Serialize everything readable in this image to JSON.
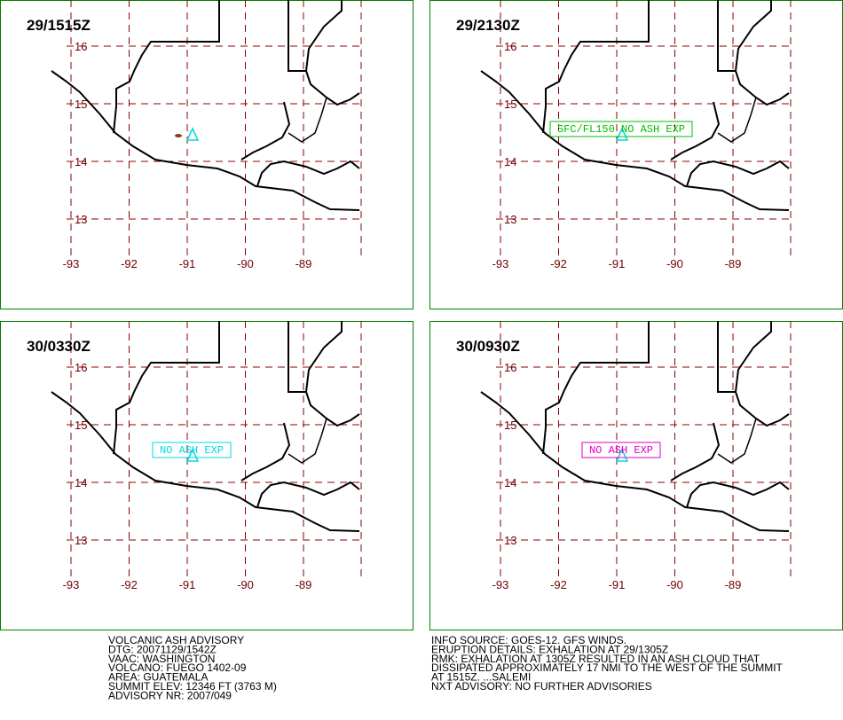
{
  "panels": [
    {
      "title": "29/1515Z"
    },
    {
      "title": "29/2130Z",
      "label": "SFC/FL150 NO ASH EXP",
      "label_color": "#00c000"
    },
    {
      "title": "30/0330Z",
      "label": "NO ASH EXP",
      "label_color": "#00d8e0"
    },
    {
      "title": "30/0930Z",
      "label": "NO ASH EXP",
      "label_color": "#e000c8"
    }
  ],
  "lat_labels": [
    16,
    15,
    14,
    13
  ],
  "lon_labels": [
    -93,
    -92,
    -91,
    -90,
    -89
  ],
  "advisory_left": [
    "VOLCANIC ASH ADVISORY",
    "DTG: 20071129/1542Z",
    "VAAC: WASHINGTON",
    "VOLCANO: FUEGO 1402-09",
    "AREA: GUATEMALA",
    "SUMMIT ELEV: 12346 FT (3763 M)",
    "ADVISORY NR: 2007/049"
  ],
  "advisory_right": [
    "INFO SOURCE: GOES-12. GFS WINDS.",
    "ERUPTION DETAILS: EXHALATION AT 29/1305Z",
    "RMK: EXHALATION AT 1305Z RESULTED IN AN ASH CLOUD THAT",
    "DISSIPATED APPROXIMATELY 17 NMI TO THE WEST OF THE SUMMIT",
    "AT 1515Z. ...SALEMI",
    "NXT ADVISORY: NO FURTHER ADVISORIES"
  ]
}
